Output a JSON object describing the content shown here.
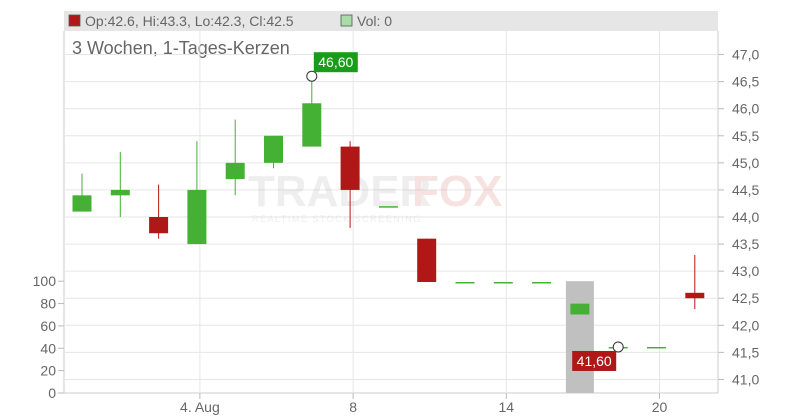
{
  "legend": {
    "ohlc_text": "Op:42.6, Hi:43.3, Lo:42.3, Cl:42.5",
    "vol_text": "Vol: 0",
    "ohlc_swatch_color": "#b01818",
    "vol_swatch_color": "#a8dca8"
  },
  "subtitle": "3 Wochen, 1-Tages-Kerzen",
  "watermark": {
    "brand_a": "TRADER",
    "brand_b": "FOX",
    "tagline": "REALTIME STOCK SCREENING"
  },
  "colors": {
    "up": "#44b034",
    "down": "#b01818",
    "volume_bar": "#c0c0c0",
    "grid": "#e6e6e6",
    "high_label_bg": "#1a9c1a",
    "low_label_bg": "#b01818"
  },
  "chart_data": {
    "type": "candlestick",
    "title": "3 Wochen, 1-Tages-Kerzen",
    "price_axis": {
      "position": "right",
      "min": 40.75,
      "max": 47.25,
      "ticks": [
        "41,0",
        "41,5",
        "42,0",
        "42,5",
        "43,0",
        "43,5",
        "44,0",
        "44,5",
        "45,0",
        "45,5",
        "46,0",
        "46,5",
        "47,0"
      ]
    },
    "volume_axis": {
      "position": "left",
      "min": 0,
      "max": 110,
      "ticks": [
        "0",
        "20",
        "40",
        "60",
        "80",
        "100"
      ]
    },
    "x_axis": {
      "tick_labels": [
        "4. Aug",
        "8",
        "14",
        "20"
      ]
    },
    "candles": [
      {
        "o": 44.1,
        "h": 44.8,
        "l": 44.1,
        "c": 44.4
      },
      {
        "o": 44.4,
        "h": 45.2,
        "l": 44.0,
        "c": 44.5
      },
      {
        "o": 44.0,
        "h": 44.6,
        "l": 43.6,
        "c": 43.7
      },
      {
        "o": 43.5,
        "h": 45.4,
        "l": 43.5,
        "c": 44.5
      },
      {
        "o": 44.7,
        "h": 45.8,
        "l": 44.4,
        "c": 45.0
      },
      {
        "o": 45.0,
        "h": 45.5,
        "l": 44.9,
        "c": 45.5
      },
      {
        "o": 45.3,
        "h": 46.6,
        "l": 45.3,
        "c": 46.1
      },
      {
        "o": 45.3,
        "h": 45.4,
        "l": 43.8,
        "c": 44.5
      },
      {
        "o": 44.2,
        "h": 44.2,
        "l": 44.2,
        "c": 44.2
      },
      {
        "o": 43.6,
        "h": 43.6,
        "l": 42.8,
        "c": 42.8
      },
      {
        "o": 42.8,
        "h": 42.8,
        "l": 42.8,
        "c": 42.8
      },
      {
        "o": 42.8,
        "h": 42.8,
        "l": 42.8,
        "c": 42.8
      },
      {
        "o": 42.8,
        "h": 42.8,
        "l": 42.8,
        "c": 42.8
      },
      {
        "o": 42.2,
        "h": 42.4,
        "l": 42.2,
        "c": 42.4
      },
      {
        "o": 41.6,
        "h": 41.6,
        "l": 41.6,
        "c": 41.6
      },
      {
        "o": 41.6,
        "h": 41.6,
        "l": 41.6,
        "c": 41.6
      },
      {
        "o": 42.6,
        "h": 43.3,
        "l": 42.3,
        "c": 42.5
      }
    ],
    "volume": [
      0,
      0,
      0,
      0,
      0,
      0,
      0,
      0,
      0,
      0,
      0,
      0,
      0,
      100,
      0,
      0,
      0
    ],
    "annotations": [
      {
        "label": "46,60",
        "type": "high",
        "value": 46.6
      },
      {
        "label": "41,60",
        "type": "low",
        "value": 41.6
      }
    ]
  }
}
